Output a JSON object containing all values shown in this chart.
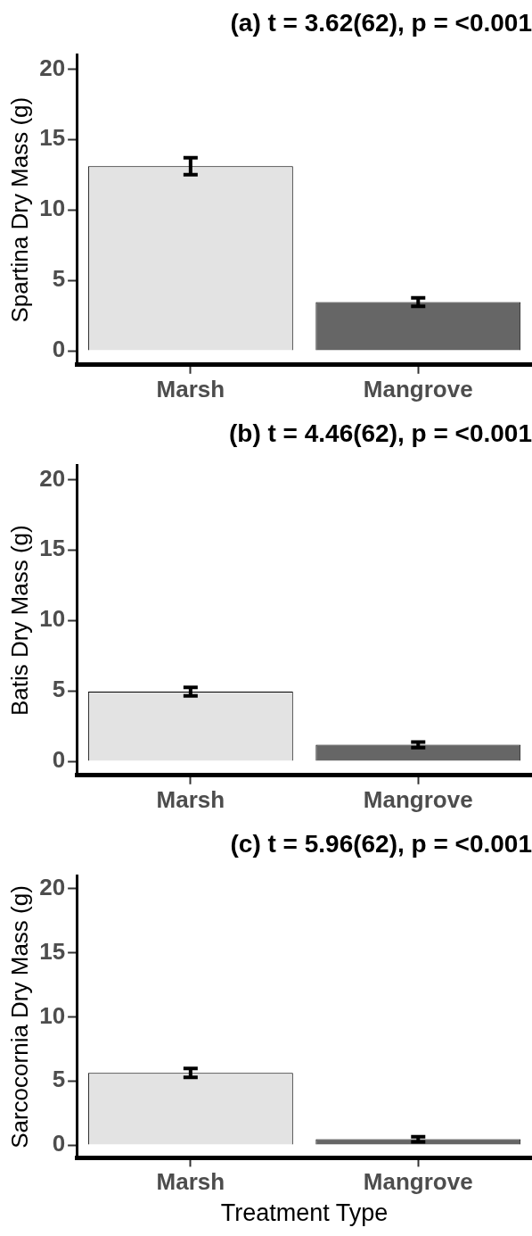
{
  "chart_data": [
    {
      "type": "bar",
      "title": "(a) t = 3.62(62), p = <0.001",
      "ylabel": "Spartina Dry Mass (g)",
      "categories": [
        "Marsh",
        "Mangrove"
      ],
      "values": [
        13.1,
        3.45
      ],
      "errors": [
        0.6,
        0.3
      ],
      "colors": [
        "#e3e3e3",
        "#666666"
      ],
      "ylim": [
        -1,
        21
      ],
      "yticks": [
        0,
        5,
        10,
        15,
        20
      ],
      "grid": false,
      "legend": false
    },
    {
      "type": "bar",
      "title": "(b) t = 4.46(62), p = <0.001",
      "ylabel": "Batis Dry Mass (g)",
      "categories": [
        "Marsh",
        "Mangrove"
      ],
      "values": [
        4.95,
        1.17
      ],
      "errors": [
        0.3,
        0.2
      ],
      "colors": [
        "#e3e3e3",
        "#666666"
      ],
      "ylim": [
        -1,
        21
      ],
      "yticks": [
        0,
        5,
        10,
        15,
        20
      ],
      "grid": false,
      "legend": false
    },
    {
      "type": "bar",
      "title": "(c) t = 5.96(62), p = <0.001",
      "xlabel": "Treatment Type",
      "ylabel": "Sarcocornia Dry Mass (g)",
      "categories": [
        "Marsh",
        "Mangrove"
      ],
      "values": [
        5.63,
        0.45
      ],
      "errors": [
        0.35,
        0.2
      ],
      "colors": [
        "#e3e3e3",
        "#666666"
      ],
      "ylim": [
        -1,
        21
      ],
      "yticks": [
        0,
        5,
        10,
        15,
        20
      ],
      "grid": false,
      "legend": false
    }
  ]
}
